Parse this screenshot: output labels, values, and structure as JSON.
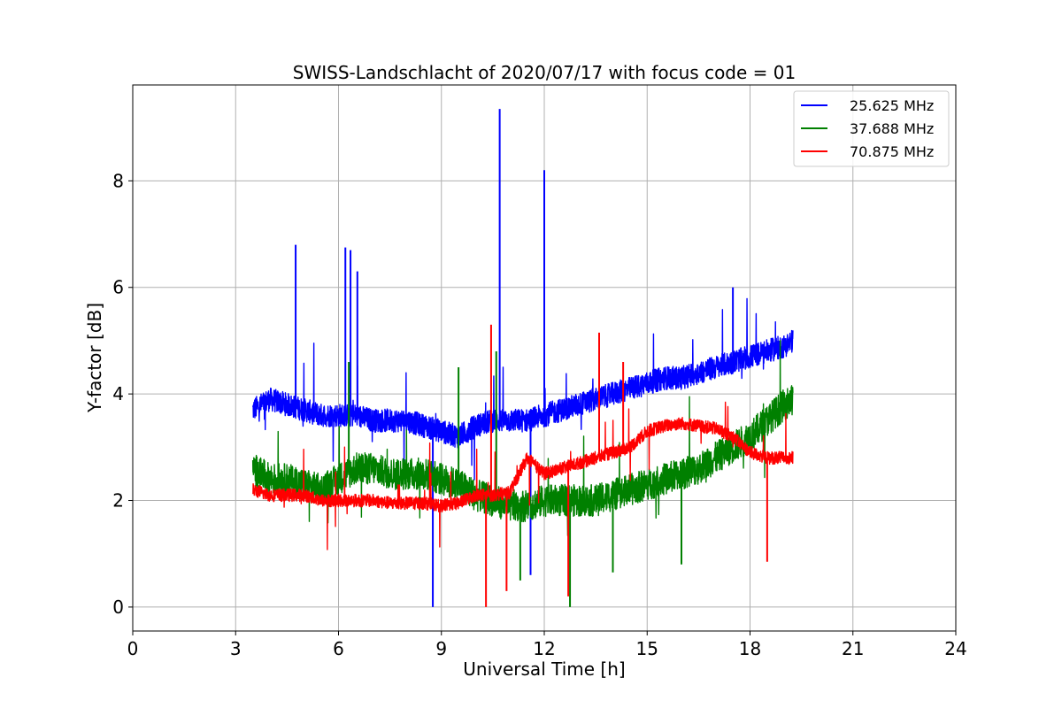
{
  "chart_data": {
    "type": "line",
    "title": "SWISS-Landschlacht of 2020/07/17 with focus code = 01",
    "xlabel": "Universal Time [h]",
    "ylabel": "Y-factor [dB]",
    "xlim": [
      0,
      24
    ],
    "ylim": [
      -0.45,
      9.8
    ],
    "x_ticks": [
      0,
      3,
      6,
      9,
      12,
      15,
      18,
      21,
      24
    ],
    "y_ticks": [
      0,
      2,
      4,
      6,
      8
    ],
    "grid": true,
    "legend_position": "top-right",
    "series": [
      {
        "name": "25.625 MHz",
        "color": "#0000ff",
        "x": [
          3.5,
          4.0,
          4.5,
          5.0,
          5.5,
          6.0,
          6.5,
          7.0,
          7.5,
          8.0,
          8.5,
          9.0,
          9.5,
          10.0,
          10.5,
          11.0,
          11.5,
          12.0,
          12.5,
          13.0,
          13.5,
          14.0,
          14.5,
          15.0,
          15.5,
          16.0,
          16.5,
          17.0,
          17.5,
          18.0,
          18.5,
          19.0,
          19.25
        ],
        "y": [
          3.7,
          3.9,
          3.8,
          3.7,
          3.6,
          3.6,
          3.6,
          3.5,
          3.5,
          3.5,
          3.4,
          3.3,
          3.2,
          3.4,
          3.5,
          3.5,
          3.5,
          3.6,
          3.7,
          3.8,
          3.9,
          4.0,
          4.1,
          4.2,
          4.3,
          4.3,
          4.4,
          4.5,
          4.6,
          4.7,
          4.8,
          4.9,
          5.0
        ],
        "spikes": [
          {
            "x": 4.75,
            "y": 6.8
          },
          {
            "x": 6.2,
            "y": 6.75
          },
          {
            "x": 6.35,
            "y": 6.7
          },
          {
            "x": 6.55,
            "y": 6.3
          },
          {
            "x": 10.7,
            "y": 9.35
          },
          {
            "x": 12.0,
            "y": 8.2
          },
          {
            "x": 17.5,
            "y": 6.0
          },
          {
            "x": 8.75,
            "y": 0.0
          },
          {
            "x": 11.6,
            "y": 0.6
          }
        ]
      },
      {
        "name": "37.688 MHz",
        "color": "#008000",
        "x": [
          3.5,
          4.0,
          4.5,
          5.0,
          5.5,
          6.0,
          6.5,
          7.0,
          7.5,
          8.0,
          8.5,
          9.0,
          9.5,
          10.0,
          10.5,
          11.0,
          11.5,
          12.0,
          12.5,
          13.0,
          13.5,
          14.0,
          14.5,
          15.0,
          15.5,
          16.0,
          16.5,
          17.0,
          17.5,
          18.0,
          18.5,
          19.0,
          19.25
        ],
        "y": [
          2.6,
          2.4,
          2.4,
          2.3,
          2.2,
          2.4,
          2.6,
          2.6,
          2.5,
          2.5,
          2.5,
          2.4,
          2.3,
          2.1,
          2.0,
          1.9,
          1.9,
          2.0,
          2.0,
          2.0,
          2.0,
          2.1,
          2.2,
          2.3,
          2.4,
          2.5,
          2.6,
          2.8,
          3.0,
          3.2,
          3.5,
          3.8,
          3.9
        ],
        "spikes": [
          {
            "x": 6.3,
            "y": 4.6
          },
          {
            "x": 9.5,
            "y": 4.5
          },
          {
            "x": 10.6,
            "y": 4.8
          },
          {
            "x": 11.3,
            "y": 0.5
          },
          {
            "x": 12.75,
            "y": 0.0
          },
          {
            "x": 14.0,
            "y": 0.65
          },
          {
            "x": 16.0,
            "y": 0.8
          }
        ]
      },
      {
        "name": "70.875 MHz",
        "color": "#ff0000",
        "x": [
          3.5,
          4.0,
          4.5,
          5.0,
          5.5,
          6.0,
          6.5,
          7.0,
          7.5,
          8.0,
          8.5,
          9.0,
          9.5,
          10.0,
          10.5,
          11.0,
          11.5,
          12.0,
          12.5,
          13.0,
          13.5,
          14.0,
          14.5,
          15.0,
          15.5,
          16.0,
          16.5,
          17.0,
          17.5,
          18.0,
          18.5,
          19.0,
          19.25
        ],
        "y": [
          2.2,
          2.1,
          2.1,
          2.1,
          2.0,
          2.0,
          2.0,
          2.0,
          1.95,
          1.95,
          1.95,
          1.9,
          1.95,
          2.1,
          2.1,
          2.15,
          2.8,
          2.5,
          2.6,
          2.7,
          2.8,
          2.9,
          3.0,
          3.3,
          3.4,
          3.45,
          3.4,
          3.35,
          3.2,
          2.9,
          2.8,
          2.8,
          2.8
        ],
        "spikes": [
          {
            "x": 10.45,
            "y": 5.3
          },
          {
            "x": 13.6,
            "y": 5.15
          },
          {
            "x": 14.3,
            "y": 4.6
          },
          {
            "x": 10.3,
            "y": 0.0
          },
          {
            "x": 10.9,
            "y": 0.3
          },
          {
            "x": 18.5,
            "y": 0.85
          },
          {
            "x": 12.7,
            "y": 0.2
          }
        ]
      }
    ]
  }
}
